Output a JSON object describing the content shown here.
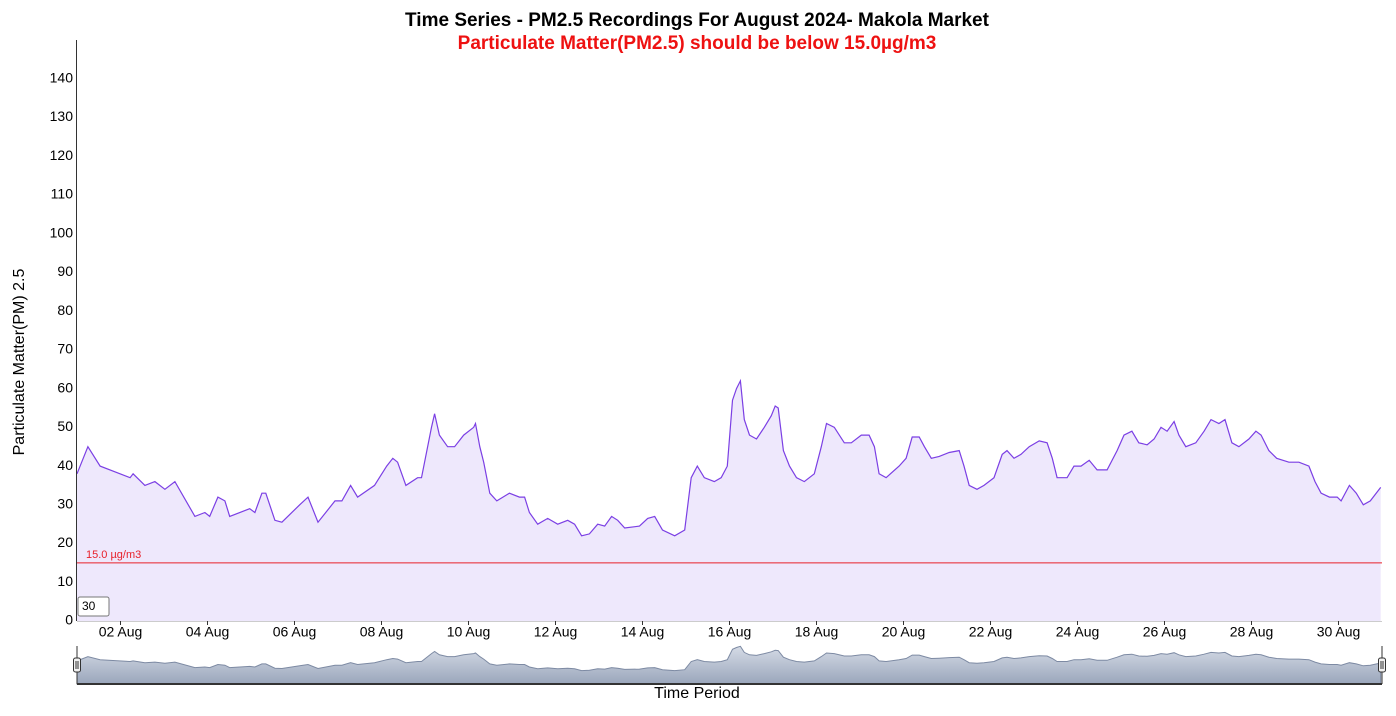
{
  "chart_data": {
    "type": "area",
    "title": "Time Series - PM2.5 Recordings For August 2024- Makola Market",
    "subtitle": "Particulate Matter(PM2.5) should be below 15.0µg/m3",
    "ylabel": "Particulate Matter(PM) 2.5",
    "xlabel": "Time Period",
    "color": "#7b3fe4",
    "fill": "#eee8fc",
    "x": [
      1.0,
      1.25,
      1.53,
      2.22,
      2.29,
      2.56,
      2.79,
      3.02,
      3.25,
      3.71,
      3.94,
      4.05,
      4.24,
      4.4,
      4.51,
      4.97,
      5.09,
      5.25,
      5.34,
      5.55,
      5.71,
      6.12,
      6.31,
      6.54,
      6.93,
      7.09,
      7.29,
      7.45,
      7.84,
      8.12,
      8.26,
      8.37,
      8.56,
      8.83,
      8.92,
      9.15,
      9.22,
      9.33,
      9.52,
      9.68,
      9.89,
      10.12,
      10.16,
      10.26,
      10.35,
      10.49,
      10.65,
      10.94,
      11.17,
      11.29,
      11.4,
      11.59,
      11.82,
      12.05,
      12.28,
      12.44,
      12.6,
      12.78,
      12.97,
      13.13,
      13.29,
      13.43,
      13.59,
      13.93,
      14.12,
      14.28,
      14.46,
      14.74,
      14.97,
      15.12,
      15.26,
      15.42,
      15.65,
      15.81,
      15.95,
      16.07,
      16.16,
      16.25,
      16.34,
      16.46,
      16.62,
      16.8,
      16.96,
      17.05,
      17.12,
      17.24,
      17.38,
      17.54,
      17.72,
      17.95,
      18.11,
      18.23,
      18.41,
      18.64,
      18.8,
      19.03,
      19.21,
      19.33,
      19.44,
      19.6,
      19.9,
      20.06,
      20.2,
      20.36,
      20.48,
      20.64,
      20.82,
      21.05,
      21.28,
      21.39,
      21.51,
      21.69,
      21.85,
      22.08,
      22.27,
      22.38,
      22.54,
      22.7,
      22.89,
      23.12,
      23.3,
      23.42,
      23.53,
      23.76,
      23.92,
      24.08,
      24.27,
      24.45,
      24.68,
      24.91,
      25.07,
      25.25,
      25.41,
      25.6,
      25.76,
      25.92,
      26.06,
      26.22,
      26.33,
      26.49,
      26.72,
      26.91,
      27.07,
      27.25,
      27.39,
      27.55,
      27.71,
      27.94,
      28.1,
      28.22,
      28.4,
      28.58,
      28.86,
      29.09,
      29.32,
      29.46,
      29.6,
      29.79,
      29.97,
      30.06,
      30.25,
      30.41,
      30.57,
      30.73,
      30.97
    ],
    "values": [
      38,
      45,
      40,
      37,
      38,
      35,
      36,
      34,
      36,
      27,
      28,
      27,
      32,
      31,
      27,
      29,
      28,
      33,
      33,
      26,
      25.5,
      30,
      32,
      25.5,
      31,
      31,
      35,
      32,
      35,
      40,
      42,
      41,
      35,
      37,
      37,
      50,
      53.5,
      48,
      45,
      45,
      48,
      50,
      51,
      45,
      41,
      33,
      31,
      33,
      32,
      32,
      28,
      25,
      26.5,
      25,
      26,
      25,
      22,
      22.5,
      25,
      24.5,
      27,
      26,
      24,
      24.5,
      26.5,
      27,
      23.5,
      22,
      23.5,
      37,
      40,
      37,
      36,
      37,
      40,
      57,
      60,
      62,
      52,
      48,
      47,
      50,
      53,
      55.5,
      55,
      44,
      40,
      37,
      36,
      38,
      45,
      51,
      50,
      46,
      46,
      48,
      48,
      45,
      38,
      37,
      40,
      42,
      47.5,
      47.5,
      45,
      42,
      42.5,
      43.5,
      44,
      40,
      35,
      34,
      35,
      37,
      43,
      44,
      42,
      43,
      45,
      46.5,
      46,
      42,
      37,
      37,
      40,
      40,
      41.5,
      39,
      39,
      44,
      48,
      49,
      46,
      45.5,
      47,
      50,
      49,
      51.5,
      48,
      45,
      46,
      49,
      52,
      51,
      52,
      46,
      45,
      47,
      49,
      48,
      44,
      42,
      41,
      41,
      40,
      36,
      33,
      32,
      32,
      31,
      35,
      33,
      30,
      31,
      34.5
    ],
    "xlim": [
      1,
      31
    ],
    "ylim": [
      0,
      150
    ],
    "xticks": [
      {
        "value": 2,
        "label": "02 Aug"
      },
      {
        "value": 4,
        "label": "04 Aug"
      },
      {
        "value": 6,
        "label": "06 Aug"
      },
      {
        "value": 8,
        "label": "08 Aug"
      },
      {
        "value": 10,
        "label": "10 Aug"
      },
      {
        "value": 12,
        "label": "12 Aug"
      },
      {
        "value": 14,
        "label": "14 Aug"
      },
      {
        "value": 16,
        "label": "16 Aug"
      },
      {
        "value": 18,
        "label": "18 Aug"
      },
      {
        "value": 20,
        "label": "20 Aug"
      },
      {
        "value": 22,
        "label": "22 Aug"
      },
      {
        "value": 24,
        "label": "24 Aug"
      },
      {
        "value": 26,
        "label": "26 Aug"
      },
      {
        "value": 28,
        "label": "28 Aug"
      },
      {
        "value": 30,
        "label": "30 Aug"
      }
    ],
    "yticks": [
      0,
      10,
      20,
      30,
      40,
      50,
      60,
      70,
      80,
      90,
      100,
      110,
      120,
      130,
      140
    ],
    "threshold": {
      "value": 15,
      "label": "15.0 µg/m3",
      "color": "#e8202a"
    },
    "input_value": "30",
    "grid": false
  }
}
